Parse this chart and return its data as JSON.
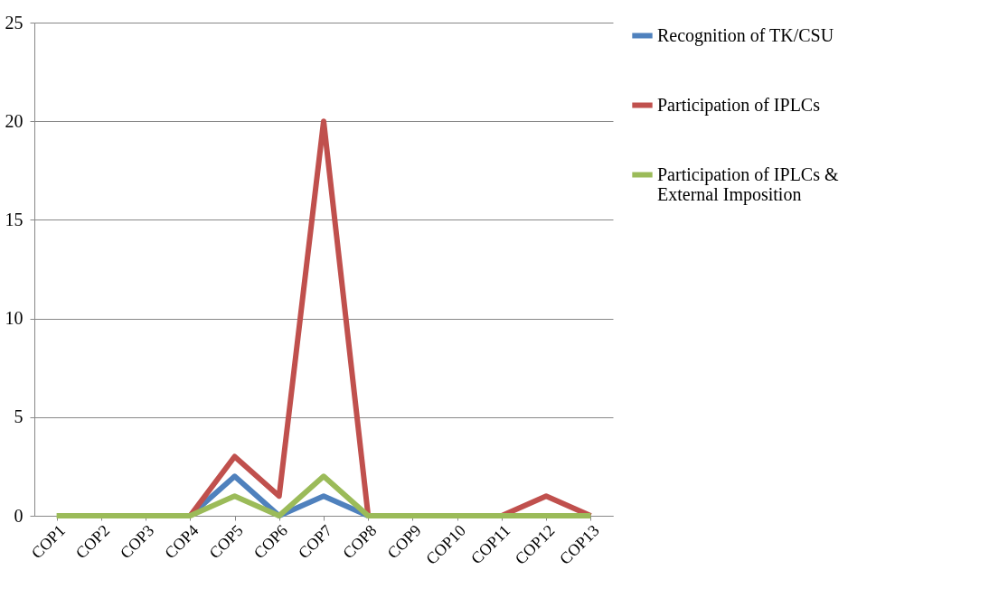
{
  "chart_data": {
    "type": "line",
    "categories": [
      "COP1",
      "COP2",
      "COP3",
      "COP4",
      "COP5",
      "COP6",
      "COP7",
      "COP8",
      "COP9",
      "COP10",
      "COP11",
      "COP12",
      "COP13"
    ],
    "series": [
      {
        "name": "Recognition of TK/CSU",
        "color": "#4f81bd",
        "values": [
          null,
          null,
          null,
          0,
          2,
          0,
          1,
          0,
          null,
          null,
          null,
          null,
          null
        ]
      },
      {
        "name": "Participation of IPLCs",
        "color": "#c0504d",
        "values": [
          null,
          null,
          null,
          0,
          3,
          1,
          20,
          0,
          null,
          null,
          0,
          1,
          0
        ]
      },
      {
        "name": "Participation of IPLCs & External Imposition",
        "color": "#9bbb59",
        "values": [
          0,
          0,
          0,
          0,
          1,
          0,
          2,
          0,
          0,
          0,
          0,
          0,
          0
        ]
      }
    ],
    "ylim": [
      0,
      25
    ],
    "yticks": [
      0,
      5,
      10,
      15,
      20,
      25
    ],
    "grid": "y",
    "legend": "right",
    "marker": "none",
    "line_style": "solid"
  }
}
